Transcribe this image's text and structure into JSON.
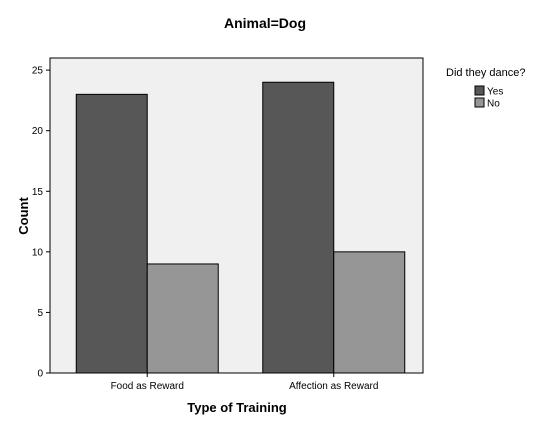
{
  "chart_data": {
    "type": "bar",
    "title": "Animal=Dog",
    "xlabel": "Type of Training",
    "ylabel": "Count",
    "categories": [
      "Food as Reward",
      "Affection as Reward"
    ],
    "series": [
      {
        "name": "Yes",
        "values": [
          23,
          24
        ],
        "color": "#575757"
      },
      {
        "name": "No",
        "values": [
          9,
          10
        ],
        "color": "#969696"
      }
    ],
    "ylim": [
      0,
      26
    ],
    "yticks": [
      0,
      5,
      10,
      15,
      20,
      25
    ],
    "grid": false,
    "plot_background": "#f0f0f0",
    "legend": {
      "title": "Did they dance?",
      "position": "top-right"
    }
  }
}
